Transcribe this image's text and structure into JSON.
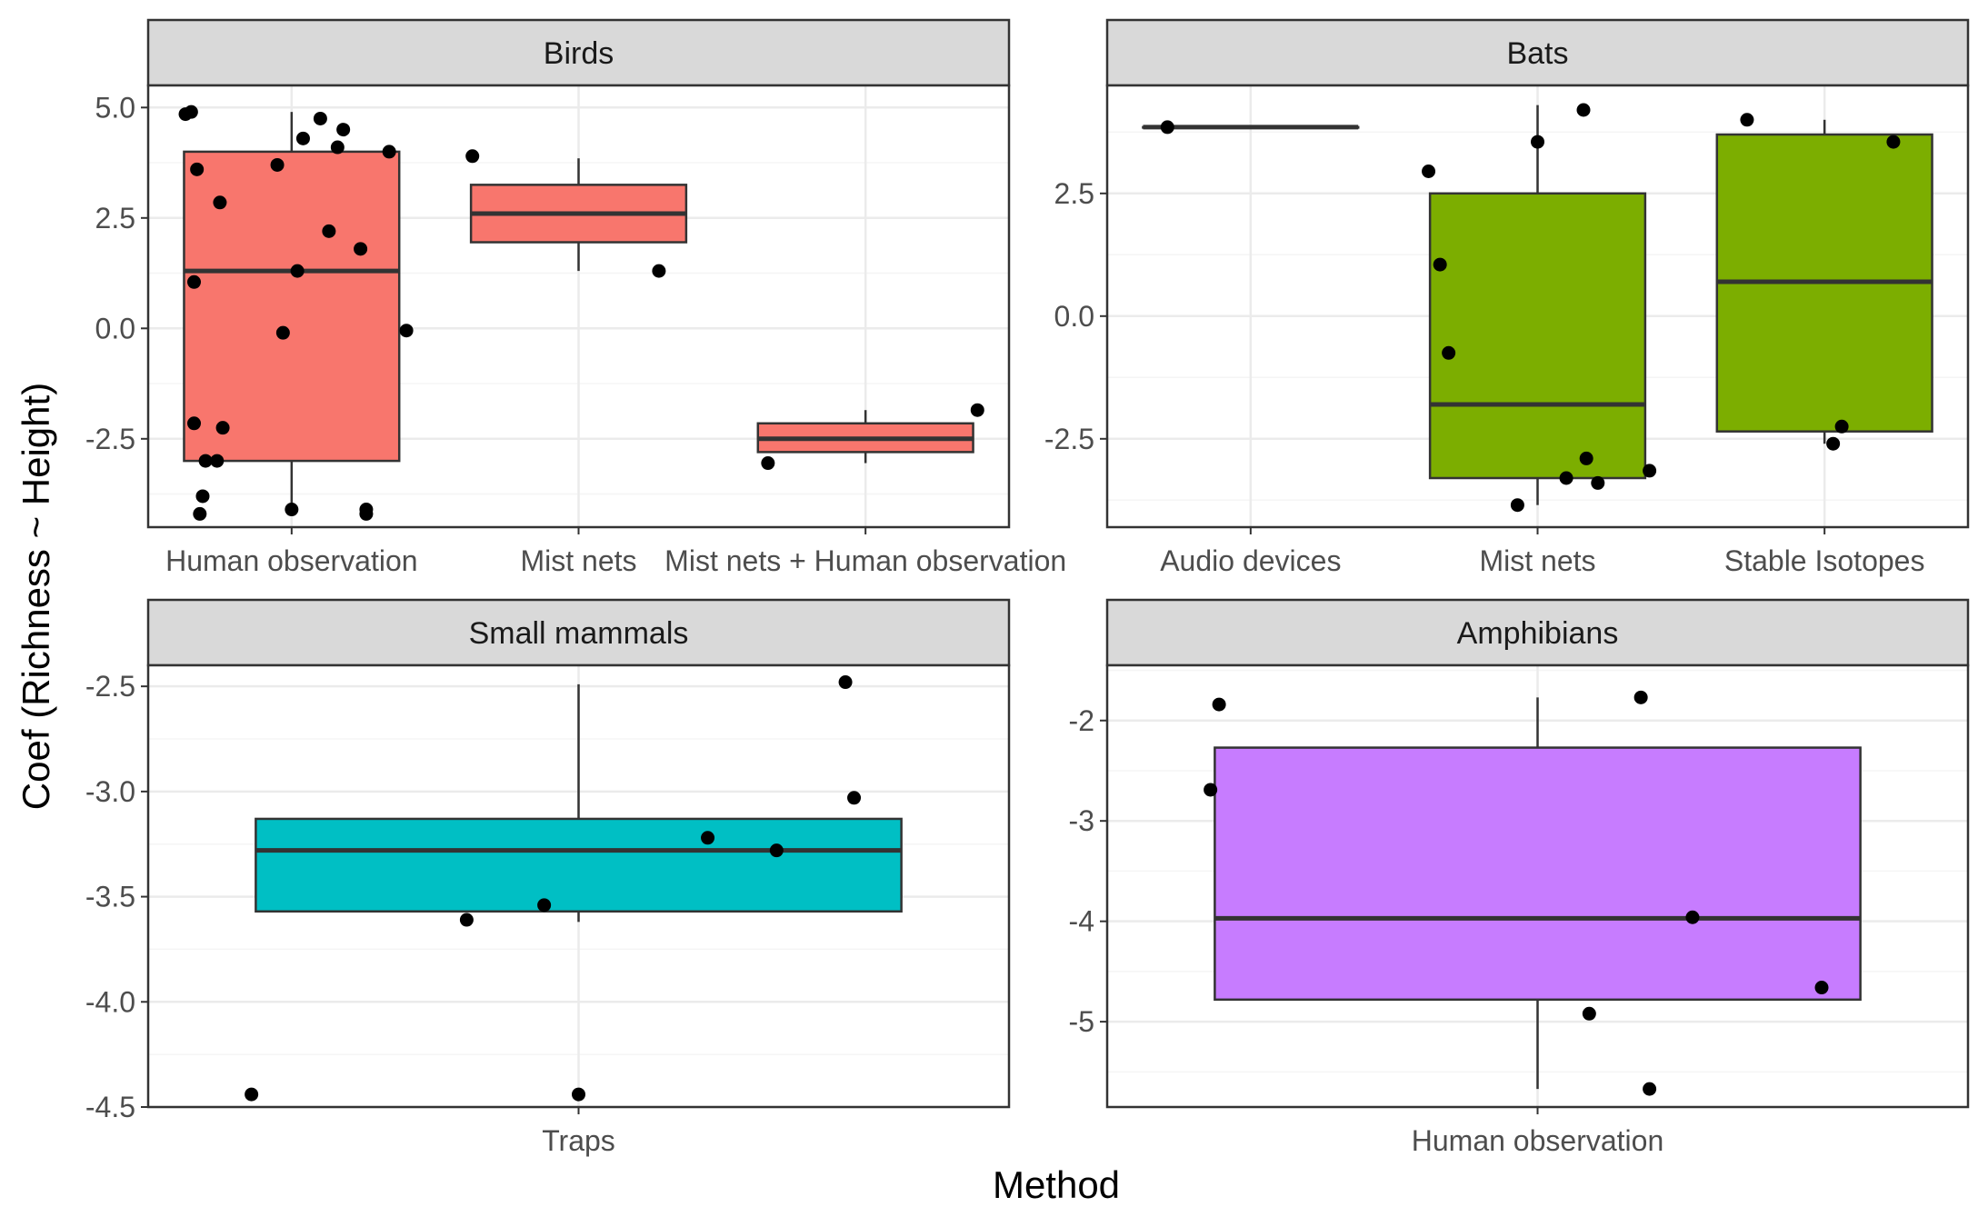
{
  "chart_data": {
    "type": "boxplot",
    "layout": "facet-2x2",
    "xlabel": "Method",
    "ylabel": "Coef (Richness ~ Height)",
    "panels": [
      {
        "title": "Birds",
        "fill": "#F8766D",
        "ylim": [
          -4.5,
          5.5
        ],
        "yticks": [
          -2.5,
          0.0,
          2.5,
          5.0
        ],
        "ytick_labels": [
          "-2.5",
          "0.0",
          "2.5",
          "5.0"
        ],
        "categories": [
          "Human observation",
          "Mist nets",
          "Mist nets + Human observation"
        ],
        "boxes": [
          {
            "category": "Human observation",
            "q1": -3.0,
            "median": 1.3,
            "q3": 4.0,
            "whisker_low": -4.05,
            "whisker_high": 4.9
          },
          {
            "category": "Mist nets",
            "q1": 1.95,
            "median": 2.6,
            "q3": 3.25,
            "whisker_low": 1.3,
            "whisker_high": 3.85
          },
          {
            "category": "Mist nets + Human observation",
            "q1": -2.8,
            "median": -2.5,
            "q3": -2.15,
            "whisker_low": -3.05,
            "whisker_high": -1.85
          }
        ],
        "points": [
          {
            "category": "Human observation",
            "jitter": -0.37,
            "y": 4.85
          },
          {
            "category": "Human observation",
            "jitter": -0.35,
            "y": 4.9
          },
          {
            "category": "Human observation",
            "jitter": -0.33,
            "y": 3.6
          },
          {
            "category": "Human observation",
            "jitter": -0.25,
            "y": 2.85
          },
          {
            "category": "Human observation",
            "jitter": -0.34,
            "y": 1.05
          },
          {
            "category": "Human observation",
            "jitter": -0.34,
            "y": -2.15
          },
          {
            "category": "Human observation",
            "jitter": -0.24,
            "y": -2.25
          },
          {
            "category": "Human observation",
            "jitter": -0.3,
            "y": -3.0
          },
          {
            "category": "Human observation",
            "jitter": -0.26,
            "y": -3.0
          },
          {
            "category": "Human observation",
            "jitter": -0.31,
            "y": -3.8
          },
          {
            "category": "Human observation",
            "jitter": -0.32,
            "y": -4.2
          },
          {
            "category": "Human observation",
            "jitter": -0.05,
            "y": 3.7
          },
          {
            "category": "Human observation",
            "jitter": 0.0,
            "y": -4.1
          },
          {
            "category": "Human observation",
            "jitter": 0.02,
            "y": 1.3
          },
          {
            "category": "Human observation",
            "jitter": 0.04,
            "y": 4.3
          },
          {
            "category": "Human observation",
            "jitter": 0.1,
            "y": 4.75
          },
          {
            "category": "Human observation",
            "jitter": 0.13,
            "y": 2.2
          },
          {
            "category": "Human observation",
            "jitter": 0.16,
            "y": 4.1
          },
          {
            "category": "Human observation",
            "jitter": 0.18,
            "y": 4.5
          },
          {
            "category": "Human observation",
            "jitter": 0.24,
            "y": 1.8
          },
          {
            "category": "Human observation",
            "jitter": 0.26,
            "y": -4.1
          },
          {
            "category": "Human observation",
            "jitter": 0.26,
            "y": -4.2
          },
          {
            "category": "Human observation",
            "jitter": 0.34,
            "y": 4.0
          },
          {
            "category": "Human observation",
            "jitter": -0.03,
            "y": -0.1
          },
          {
            "category": "Human observation",
            "jitter": 0.4,
            "y": -0.05
          },
          {
            "category": "Mist nets",
            "jitter": -0.37,
            "y": 3.9
          },
          {
            "category": "Mist nets",
            "jitter": 0.28,
            "y": 1.3
          },
          {
            "category": "Mist nets + Human observation",
            "jitter": -0.34,
            "y": -3.05
          },
          {
            "category": "Mist nets + Human observation",
            "jitter": 0.39,
            "y": -1.85
          }
        ]
      },
      {
        "title": "Bats",
        "fill": "#7CAE00",
        "ylim": [
          -4.3,
          4.7
        ],
        "yticks": [
          -2.5,
          0.0,
          2.5
        ],
        "ytick_labels": [
          "-2.5",
          "0.0",
          "2.5"
        ],
        "categories": [
          "Audio devices",
          "Mist nets",
          "Stable Isotopes"
        ],
        "boxes": [
          {
            "category": "Audio devices",
            "q1": 3.85,
            "median": 3.85,
            "q3": 3.85,
            "whisker_low": 3.85,
            "whisker_high": 3.85
          },
          {
            "category": "Mist nets",
            "q1": -3.3,
            "median": -1.8,
            "q3": 2.5,
            "whisker_low": -3.85,
            "whisker_high": 4.3
          },
          {
            "category": "Stable Isotopes",
            "q1": -2.35,
            "median": 0.7,
            "q3": 3.7,
            "whisker_low": -2.6,
            "whisker_high": 4.0
          }
        ],
        "points": [
          {
            "category": "Audio devices",
            "jitter": -0.29,
            "y": 3.85
          },
          {
            "category": "Mist nets",
            "jitter": -0.38,
            "y": 2.95
          },
          {
            "category": "Mist nets",
            "jitter": -0.34,
            "y": 1.05
          },
          {
            "category": "Mist nets",
            "jitter": -0.31,
            "y": -0.75
          },
          {
            "category": "Mist nets",
            "jitter": -0.07,
            "y": -3.85
          },
          {
            "category": "Mist nets",
            "jitter": 0.0,
            "y": 3.55
          },
          {
            "category": "Mist nets",
            "jitter": 0.1,
            "y": -3.3
          },
          {
            "category": "Mist nets",
            "jitter": 0.16,
            "y": 4.2
          },
          {
            "category": "Mist nets",
            "jitter": 0.17,
            "y": -2.9
          },
          {
            "category": "Mist nets",
            "jitter": 0.21,
            "y": -3.4
          },
          {
            "category": "Mist nets",
            "jitter": 0.39,
            "y": -3.15
          },
          {
            "category": "Stable Isotopes",
            "jitter": -0.27,
            "y": 4.0
          },
          {
            "category": "Stable Isotopes",
            "jitter": 0.03,
            "y": -2.6
          },
          {
            "category": "Stable Isotopes",
            "jitter": 0.06,
            "y": -2.25
          },
          {
            "category": "Stable Isotopes",
            "jitter": 0.24,
            "y": 3.55
          }
        ]
      },
      {
        "title": "Small mammals",
        "fill": "#00BFC4",
        "ylim": [
          -4.5,
          -2.4
        ],
        "yticks": [
          -4.5,
          -4.0,
          -3.5,
          -3.0,
          -2.5
        ],
        "ytick_labels": [
          "-4.5",
          "-4.0",
          "-3.5",
          "-3.0",
          "-2.5"
        ],
        "categories": [
          "Traps"
        ],
        "boxes": [
          {
            "category": "Traps",
            "q1": -3.57,
            "median": -3.28,
            "q3": -3.13,
            "whisker_low": -3.62,
            "whisker_high": -2.49
          }
        ],
        "points": [
          {
            "category": "Traps",
            "jitter": -0.38,
            "y": -4.44
          },
          {
            "category": "Traps",
            "jitter": -0.13,
            "y": -3.61
          },
          {
            "category": "Traps",
            "jitter": -0.04,
            "y": -3.54
          },
          {
            "category": "Traps",
            "jitter": 0.0,
            "y": -4.44
          },
          {
            "category": "Traps",
            "jitter": 0.15,
            "y": -3.22
          },
          {
            "category": "Traps",
            "jitter": 0.23,
            "y": -3.28
          },
          {
            "category": "Traps",
            "jitter": 0.31,
            "y": -2.48
          },
          {
            "category": "Traps",
            "jitter": 0.32,
            "y": -3.03
          }
        ]
      },
      {
        "title": "Amphibians",
        "fill": "#C77CFF",
        "ylim": [
          -5.85,
          -1.45
        ],
        "yticks": [
          -5,
          -4,
          -3,
          -2
        ],
        "ytick_labels": [
          "-5",
          "-4",
          "-3",
          "-2"
        ],
        "categories": [
          "Human observation"
        ],
        "boxes": [
          {
            "category": "Human observation",
            "q1": -4.78,
            "median": -3.97,
            "q3": -2.27,
            "whisker_low": -5.67,
            "whisker_high": -1.77
          }
        ],
        "points": [
          {
            "category": "Human observation",
            "jitter": -0.38,
            "y": -2.69
          },
          {
            "category": "Human observation",
            "jitter": -0.37,
            "y": -1.84
          },
          {
            "category": "Human observation",
            "jitter": 0.06,
            "y": -4.92
          },
          {
            "category": "Human observation",
            "jitter": 0.12,
            "y": -1.77
          },
          {
            "category": "Human observation",
            "jitter": 0.13,
            "y": -5.67
          },
          {
            "category": "Human observation",
            "jitter": 0.18,
            "y": -3.96
          },
          {
            "category": "Human observation",
            "jitter": 0.33,
            "y": -4.66
          }
        ]
      }
    ],
    "colors": {
      "strip_fill": "#D9D9D9",
      "panel_border": "#333333",
      "grid_major": "#EBEBEB",
      "grid_minor": "#F5F5F5",
      "box_stroke": "#333333",
      "point": "#000000"
    }
  }
}
